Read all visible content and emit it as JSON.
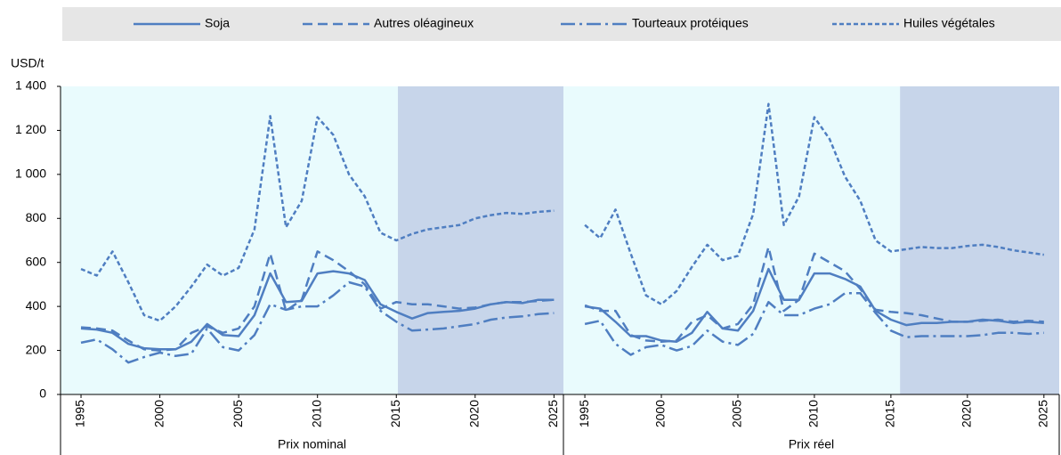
{
  "chart_data": [
    {
      "type": "line",
      "ylabel": "USD/t",
      "xlabel": "Prix nominal",
      "x": [
        1995,
        1996,
        1997,
        1998,
        1999,
        2000,
        2001,
        2002,
        2003,
        2004,
        2005,
        2006,
        2007,
        2008,
        2009,
        2010,
        2011,
        2012,
        2013,
        2014,
        2015,
        2016,
        2017,
        2018,
        2019,
        2020,
        2021,
        2022,
        2023,
        2024,
        2025
      ],
      "xlim": [
        1993.7,
        2025.6
      ],
      "xticks": [
        1995,
        2000,
        2005,
        2010,
        2015,
        2020,
        2025
      ],
      "projection_from": 2015.1,
      "ylim": [
        0,
        1400
      ],
      "yticks": [
        0,
        200,
        400,
        600,
        800,
        {
          "value": 1000,
          "label": "1 000"
        },
        {
          "value": 1200,
          "label": "1 200"
        },
        {
          "value": 1400,
          "label": "1 400"
        }
      ],
      "series": [
        {
          "name": "Soja",
          "color": "#4f7ec1",
          "style": "solid",
          "values": [
            300,
            295,
            280,
            230,
            210,
            205,
            205,
            240,
            320,
            270,
            265,
            360,
            550,
            420,
            425,
            550,
            560,
            550,
            520,
            410,
            375,
            345,
            370,
            375,
            380,
            390,
            410,
            420,
            415,
            430,
            430
          ]
        },
        {
          "name": "Autres oléagineux",
          "color": "#4f7ec1",
          "style": "dashed",
          "values": [
            305,
            300,
            290,
            245,
            205,
            200,
            205,
            280,
            310,
            280,
            300,
            400,
            640,
            380,
            430,
            650,
            610,
            560,
            500,
            390,
            420,
            410,
            410,
            400,
            390,
            395,
            410,
            420,
            420,
            425,
            430
          ]
        },
        {
          "name": "Tourteaux protéiques",
          "color": "#4f7ec1",
          "style": "dashdot",
          "values": [
            235,
            250,
            205,
            145,
            170,
            190,
            175,
            185,
            300,
            215,
            200,
            270,
            410,
            385,
            400,
            400,
            450,
            510,
            490,
            380,
            330,
            290,
            295,
            300,
            310,
            320,
            340,
            350,
            355,
            365,
            370
          ]
        },
        {
          "name": "Huiles végétales",
          "color": "#4f7ec1",
          "style": "dotted",
          "values": [
            570,
            540,
            650,
            510,
            360,
            335,
            400,
            490,
            590,
            540,
            575,
            750,
            1265,
            760,
            880,
            1260,
            1180,
            1000,
            900,
            735,
            700,
            730,
            750,
            760,
            770,
            800,
            815,
            825,
            820,
            830,
            835
          ]
        }
      ]
    },
    {
      "type": "line",
      "xlabel": "Prix réel",
      "x": [
        1995,
        1996,
        1997,
        1998,
        1999,
        2000,
        2001,
        2002,
        2003,
        2004,
        2005,
        2006,
        2007,
        2008,
        2009,
        2010,
        2011,
        2012,
        2013,
        2014,
        2015,
        2016,
        2017,
        2018,
        2019,
        2020,
        2021,
        2022,
        2023,
        2024,
        2025
      ],
      "xlim": [
        1993.6,
        2026.0
      ],
      "xticks": [
        1995,
        2000,
        2005,
        2010,
        2015,
        2020,
        2025
      ],
      "projection_from": 2015.6,
      "ylim": [
        0,
        1400
      ],
      "series": [
        {
          "color": "#4f7ec1",
          "style": "solid",
          "values": [
            400,
            390,
            330,
            265,
            265,
            245,
            240,
            280,
            375,
            300,
            290,
            380,
            570,
            430,
            430,
            550,
            550,
            525,
            490,
            380,
            340,
            315,
            325,
            325,
            330,
            330,
            340,
            335,
            325,
            330,
            325
          ]
        },
        {
          "color": "#4f7ec1",
          "style": "dashed",
          "values": [
            405,
            380,
            380,
            270,
            245,
            240,
            245,
            330,
            360,
            300,
            320,
            410,
            670,
            380,
            430,
            640,
            600,
            560,
            480,
            385,
            375,
            370,
            360,
            345,
            330,
            330,
            335,
            340,
            330,
            335,
            330
          ]
        },
        {
          "color": "#4f7ec1",
          "style": "dashdot",
          "values": [
            320,
            335,
            230,
            180,
            215,
            225,
            200,
            220,
            290,
            240,
            225,
            275,
            420,
            360,
            360,
            390,
            410,
            460,
            460,
            370,
            290,
            260,
            265,
            265,
            265,
            265,
            270,
            280,
            280,
            275,
            280
          ]
        },
        {
          "color": "#4f7ec1",
          "style": "dotted",
          "values": [
            770,
            710,
            840,
            640,
            450,
            410,
            470,
            580,
            680,
            610,
            630,
            820,
            1320,
            770,
            900,
            1260,
            1160,
            990,
            880,
            700,
            650,
            660,
            670,
            665,
            665,
            675,
            680,
            670,
            655,
            645,
            635
          ]
        }
      ]
    }
  ]
}
